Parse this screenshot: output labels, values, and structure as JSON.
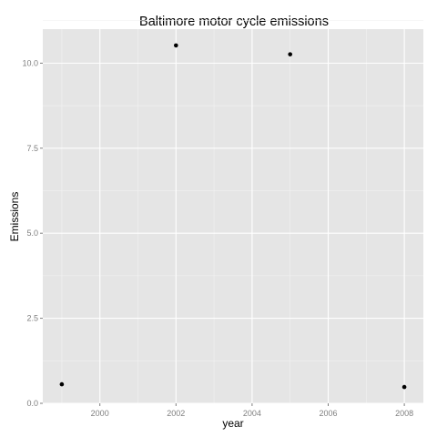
{
  "chart_data": {
    "type": "scatter",
    "title": "Baltimore motor cycle emissions",
    "xlabel": "year",
    "ylabel": "Emissions",
    "x": [
      1999,
      2002,
      2005,
      2008
    ],
    "y": [
      0.56,
      10.52,
      10.26,
      0.48
    ],
    "xlim": [
      1998.5,
      2008.5
    ],
    "ylim": [
      0.0,
      11.0
    ],
    "xticks": [
      2000,
      2002,
      2004,
      2006,
      2008
    ],
    "xtick_labels": [
      "2000",
      "2002",
      "2004",
      "2006",
      "2008"
    ],
    "yticks": [
      0.0,
      2.5,
      5.0,
      7.5,
      10.0
    ],
    "ytick_labels": [
      "0.0",
      "2.5",
      "5.0",
      "7.5",
      "10.0"
    ],
    "grid": true,
    "colors": {
      "panel_background": "#e5e5e5",
      "grid_major": "#ffffff",
      "grid_minor": "#f2f2f2",
      "point": "#000000",
      "tick_label": "#7f7f7f"
    }
  }
}
